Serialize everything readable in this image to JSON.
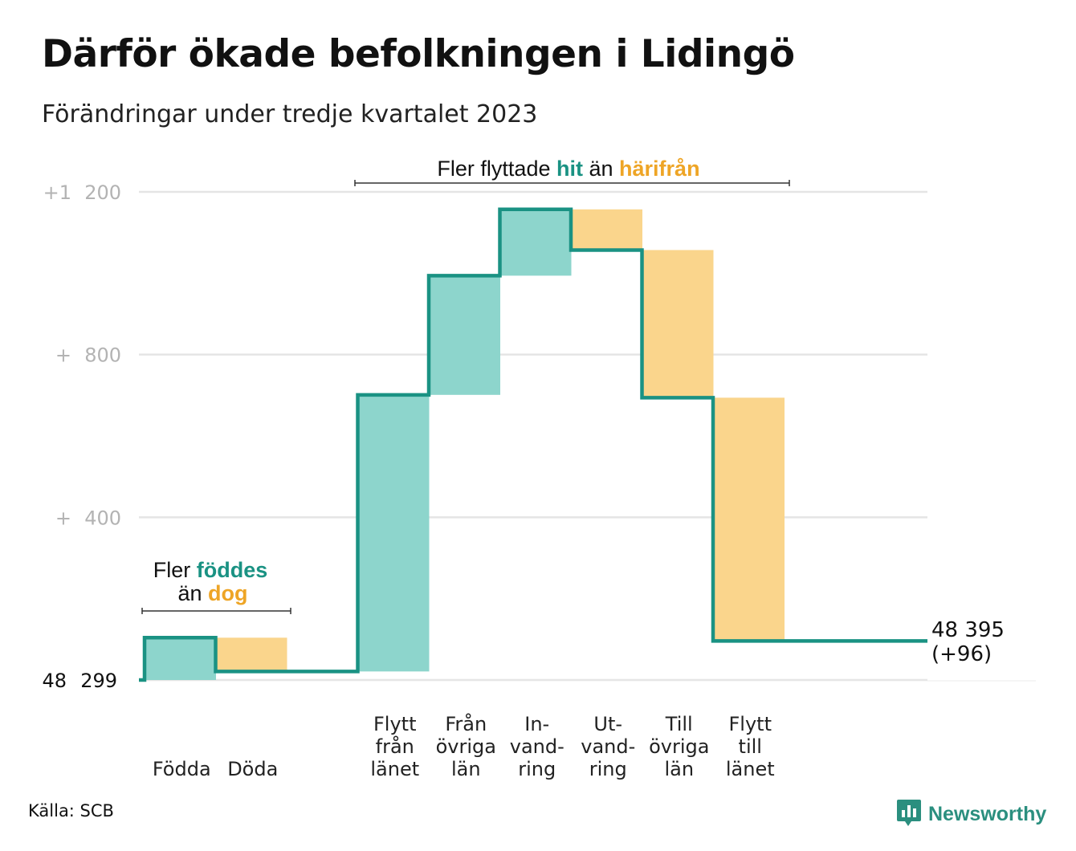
{
  "title": "Därför ökade befolkningen i Lidingö",
  "subtitle": "Förändringar under tredje kvartalet 2023",
  "source": "Källa: SCB",
  "brand": {
    "name": "Newsworthy",
    "icon": "newsworthy-logo-icon"
  },
  "colors": {
    "increase": "#8dd5cc",
    "decrease": "#fad58c",
    "line": "#1a9283",
    "grid": "#e5e5e5",
    "tick": "#b3b3b3",
    "hit": "#1a9283",
    "harifran": "#eea526"
  },
  "chart_data": {
    "type": "waterfall",
    "title": "Därför ökade befolkningen i Lidingö",
    "subtitle": "Förändringar under tredje kvartalet 2023",
    "start_value": 48299,
    "start_label": [
      "48",
      "299"
    ],
    "end_value": 48395,
    "end_label": [
      "48 395",
      "(+96)"
    ],
    "ylim": [
      0,
      1200
    ],
    "y_ticks": [
      {
        "value": 400,
        "labels": [
          "+",
          "400"
        ]
      },
      {
        "value": 800,
        "labels": [
          "+",
          "800"
        ]
      },
      {
        "value": 1200,
        "labels": [
          "+1",
          "200"
        ]
      }
    ],
    "steps": [
      {
        "label_lines": [
          "Födda"
        ],
        "change": 104
      },
      {
        "label_lines": [
          "Döda"
        ],
        "change": -83
      },
      {
        "label_lines": [
          ""
        ],
        "change": 0
      },
      {
        "label_lines": [
          "Flytt",
          "från",
          "länet"
        ],
        "change": 680
      },
      {
        "label_lines": [
          "Från",
          "övriga",
          "län"
        ],
        "change": 293
      },
      {
        "label_lines": [
          "In-",
          "vand-",
          "ring"
        ],
        "change": 163
      },
      {
        "label_lines": [
          "Ut-",
          "vand-",
          "ring"
        ],
        "change": -100
      },
      {
        "label_lines": [
          "Till",
          "övriga",
          "län"
        ],
        "change": -363
      },
      {
        "label_lines": [
          "Flytt",
          "till",
          "länet"
        ],
        "change": -598
      },
      {
        "label_lines": [
          ""
        ],
        "change": 0
      }
    ],
    "annotations": [
      {
        "parts": [
          [
            "Fler ",
            "plain"
          ],
          [
            "föddes",
            "hit"
          ]
        ],
        "parts2": [
          [
            "än ",
            "plain"
          ],
          [
            "dog",
            "harifran"
          ]
        ]
      },
      {
        "parts": [
          [
            "Fler flyttade ",
            "plain"
          ],
          [
            "hit",
            "hit"
          ],
          [
            "  än ",
            "plain"
          ],
          [
            "härifrån",
            "harifran"
          ]
        ]
      }
    ],
    "grid": true
  }
}
